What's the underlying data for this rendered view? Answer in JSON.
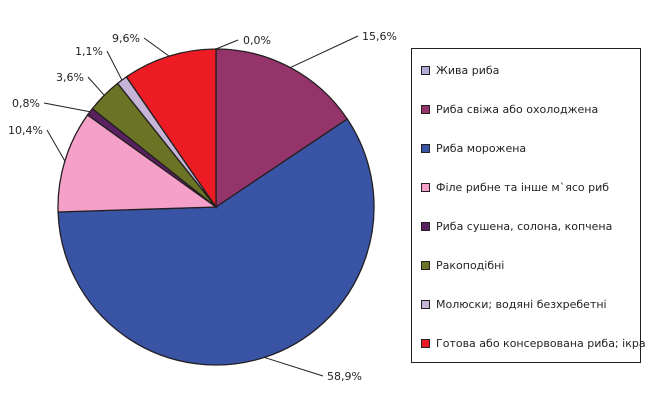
{
  "chart_data": {
    "type": "pie",
    "slices": [
      {
        "label": "Жива риба",
        "value": 0.0,
        "value_label": "0,0%",
        "color": "#b3a9d6"
      },
      {
        "label": "Риба свіжа або охолоджена",
        "value": 15.6,
        "value_label": "15,6%",
        "color": "#95346a"
      },
      {
        "label": "Риба морожена",
        "value": 58.9,
        "value_label": "58,9%",
        "color": "#3954a5"
      },
      {
        "label": "Філе рибне та інше м`ясо риб",
        "value": 10.4,
        "value_label": "10,4%",
        "color": "#f4a0c8"
      },
      {
        "label": "Риба сушена, солона, копчена",
        "value": 0.8,
        "value_label": "0,8%",
        "color": "#5a2060"
      },
      {
        "label": "Ракоподібні",
        "value": 3.6,
        "value_label": "3,6%",
        "color": "#6b7324"
      },
      {
        "label": "Молюски; водяні безхребетні",
        "value": 1.1,
        "value_label": "1,1%",
        "color": "#c7b5d8"
      },
      {
        "label": "Готова або консервована риба; ікра",
        "value": 9.6,
        "value_label": "9,6%",
        "color": "#ed1c24"
      }
    ],
    "start_angle": "12 o'clock",
    "direction": "clockwise",
    "legend_position": "right"
  }
}
